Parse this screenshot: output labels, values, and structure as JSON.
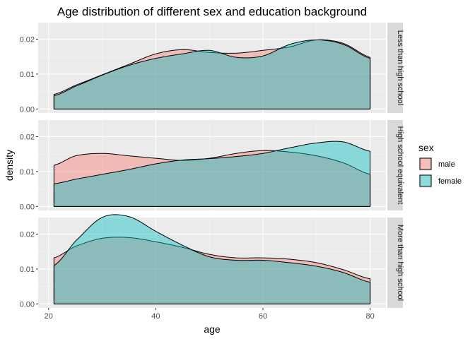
{
  "chart_data": {
    "type": "area",
    "subtype": "faceted density",
    "title": "Age distribution of different sex and education background",
    "xlabel": "age",
    "ylabel": "density",
    "xlim": [
      21,
      80
    ],
    "x_ticks": [
      20,
      40,
      60,
      80
    ],
    "ylim": [
      0,
      0.026
    ],
    "y_ticks": [
      0.0,
      0.01,
      0.02
    ],
    "y_tick_labels": [
      "0.00",
      "0.01",
      "0.02"
    ],
    "grid": true,
    "legend": {
      "title": "sex",
      "position": "right",
      "entries": [
        {
          "label": "male",
          "color": "#f8766d"
        },
        {
          "label": "female",
          "color": "#00bfc4"
        }
      ]
    },
    "x": [
      21,
      25,
      30,
      35,
      40,
      45,
      50,
      55,
      60,
      65,
      70,
      75,
      80
    ],
    "facets": [
      {
        "label": "Less than high school",
        "series": [
          {
            "name": "male",
            "values": [
              0.0042,
              0.0068,
              0.0098,
              0.0128,
              0.0158,
              0.017,
              0.0162,
              0.016,
              0.0168,
              0.0178,
              0.0198,
              0.0188,
              0.0148
            ]
          },
          {
            "name": "female",
            "values": [
              0.0038,
              0.0065,
              0.0097,
              0.0125,
              0.0145,
              0.0158,
              0.0168,
              0.0148,
              0.0152,
              0.0185,
              0.0198,
              0.0185,
              0.0145
            ]
          }
        ]
      },
      {
        "label": "High school equivalent",
        "series": [
          {
            "name": "male",
            "values": [
              0.0118,
              0.0145,
              0.0152,
              0.0145,
              0.0138,
              0.0132,
              0.0138,
              0.0152,
              0.016,
              0.0156,
              0.0145,
              0.0125,
              0.0092
            ]
          },
          {
            "name": "female",
            "values": [
              0.0065,
              0.0078,
              0.0092,
              0.0106,
              0.0122,
              0.0133,
              0.0137,
              0.0143,
              0.0152,
              0.0168,
              0.0182,
              0.0185,
              0.0158
            ]
          }
        ]
      },
      {
        "label": "More than high school",
        "series": [
          {
            "name": "male",
            "values": [
              0.0132,
              0.0165,
              0.0188,
              0.019,
              0.0178,
              0.0162,
              0.0142,
              0.0132,
              0.0132,
              0.0128,
              0.0118,
              0.0098,
              0.0072
            ]
          },
          {
            "name": "female",
            "values": [
              0.011,
              0.018,
              0.0248,
              0.025,
              0.0208,
              0.0168,
              0.0135,
              0.0125,
              0.0125,
              0.0118,
              0.0108,
              0.009,
              0.0062
            ]
          }
        ]
      }
    ]
  }
}
